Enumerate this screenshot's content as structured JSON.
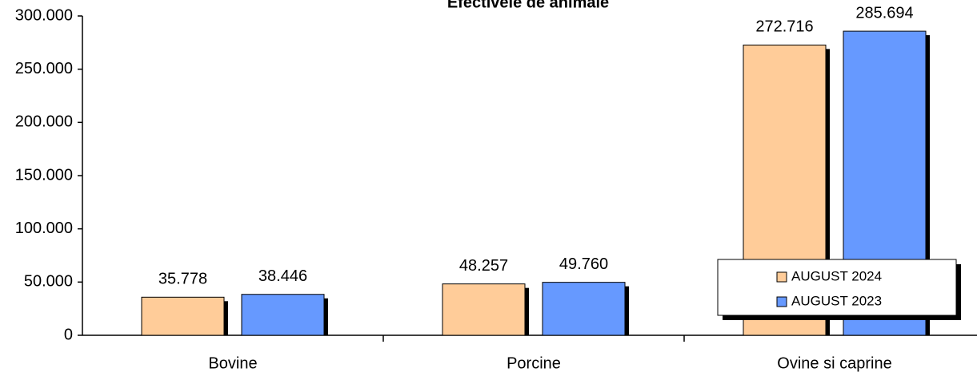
{
  "chart_data": {
    "type": "bar",
    "title": "Efectivele de animale",
    "categories": [
      "Bovine",
      "Porcine",
      "Ovine si caprine"
    ],
    "series": [
      {
        "name": "AUGUST 2024",
        "color": "#FFCC99",
        "values": [
          35778,
          48257,
          272716
        ],
        "value_labels": [
          "35.778",
          "48.257",
          "272.716"
        ]
      },
      {
        "name": "AUGUST 2023",
        "color": "#6699FF",
        "values": [
          38446,
          49760,
          285694
        ],
        "value_labels": [
          "38.446",
          "49.760",
          "285.694"
        ]
      }
    ],
    "ylim": [
      0,
      300000
    ],
    "yticks": [
      0,
      {
        "value": 50000,
        "label": "50.000"
      },
      {
        "value": 100000,
        "label": "100.000"
      },
      {
        "value": 150000,
        "label": "150.000"
      },
      {
        "value": 200000,
        "label": "200.000"
      },
      {
        "value": 250000,
        "label": "250.000"
      },
      {
        "value": 300000,
        "label": "300.000"
      }
    ],
    "grid": false,
    "legend": "lower right"
  }
}
